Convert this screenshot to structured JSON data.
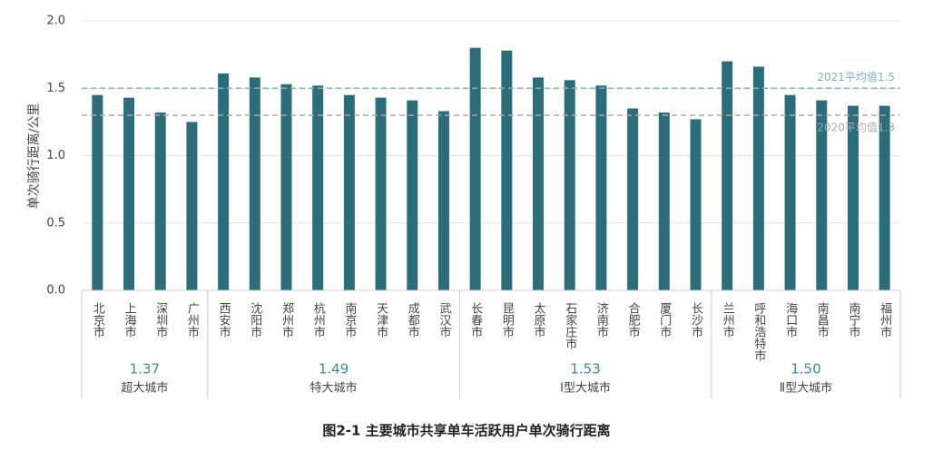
{
  "chart_data": {
    "type": "bar",
    "y_label": "单次骑行距离/公里",
    "caption": "图2-1 主要城市共享单车活跃用户单次骑行距离",
    "color": "#2d6d79",
    "grid": true,
    "ylim": [
      0,
      2
    ],
    "yticks": [
      {
        "value": 0,
        "label": "0.0"
      },
      {
        "value": 0.5,
        "label": "0.5"
      },
      {
        "value": 1,
        "label": "1.0"
      },
      {
        "value": 1.5,
        "label": "1.5"
      },
      {
        "value": 2,
        "label": "2.0"
      }
    ],
    "reference_lines": [
      {
        "value": 1.5,
        "label": "2021平均值1.5",
        "color": "#7fb5ba"
      },
      {
        "value": 1.3,
        "label": "2020平均值1.3",
        "color": "#aaaaaa"
      }
    ],
    "groups": [
      {
        "name": "超大城市",
        "average": 1.37,
        "categories": [
          "北京市",
          "上海市",
          "深圳市",
          "广州市"
        ],
        "values": [
          1.45,
          1.43,
          1.32,
          1.25
        ]
      },
      {
        "name": "特大城市",
        "average": 1.49,
        "categories": [
          "西安市",
          "沈阳市",
          "郑州市",
          "杭州市",
          "南京市",
          "天津市",
          "成都市",
          "武汉市"
        ],
        "values": [
          1.61,
          1.58,
          1.53,
          1.52,
          1.45,
          1.43,
          1.41,
          1.33
        ]
      },
      {
        "name": "Ⅰ型大城市",
        "average": 1.53,
        "categories": [
          "长春市",
          "昆明市",
          "太原市",
          "石家庄市",
          "济南市",
          "合肥市",
          "厦门市",
          "长沙市"
        ],
        "values": [
          1.8,
          1.78,
          1.58,
          1.56,
          1.52,
          1.35,
          1.32,
          1.27
        ]
      },
      {
        "name": "Ⅱ型大城市",
        "average": 1.5,
        "average_label": "1.50",
        "categories": [
          "兰州市",
          "呼和浩特市",
          "海口市",
          "南昌市",
          "南宁市",
          "福州市"
        ],
        "values": [
          1.7,
          1.66,
          1.45,
          1.41,
          1.37,
          1.37
        ]
      }
    ]
  }
}
